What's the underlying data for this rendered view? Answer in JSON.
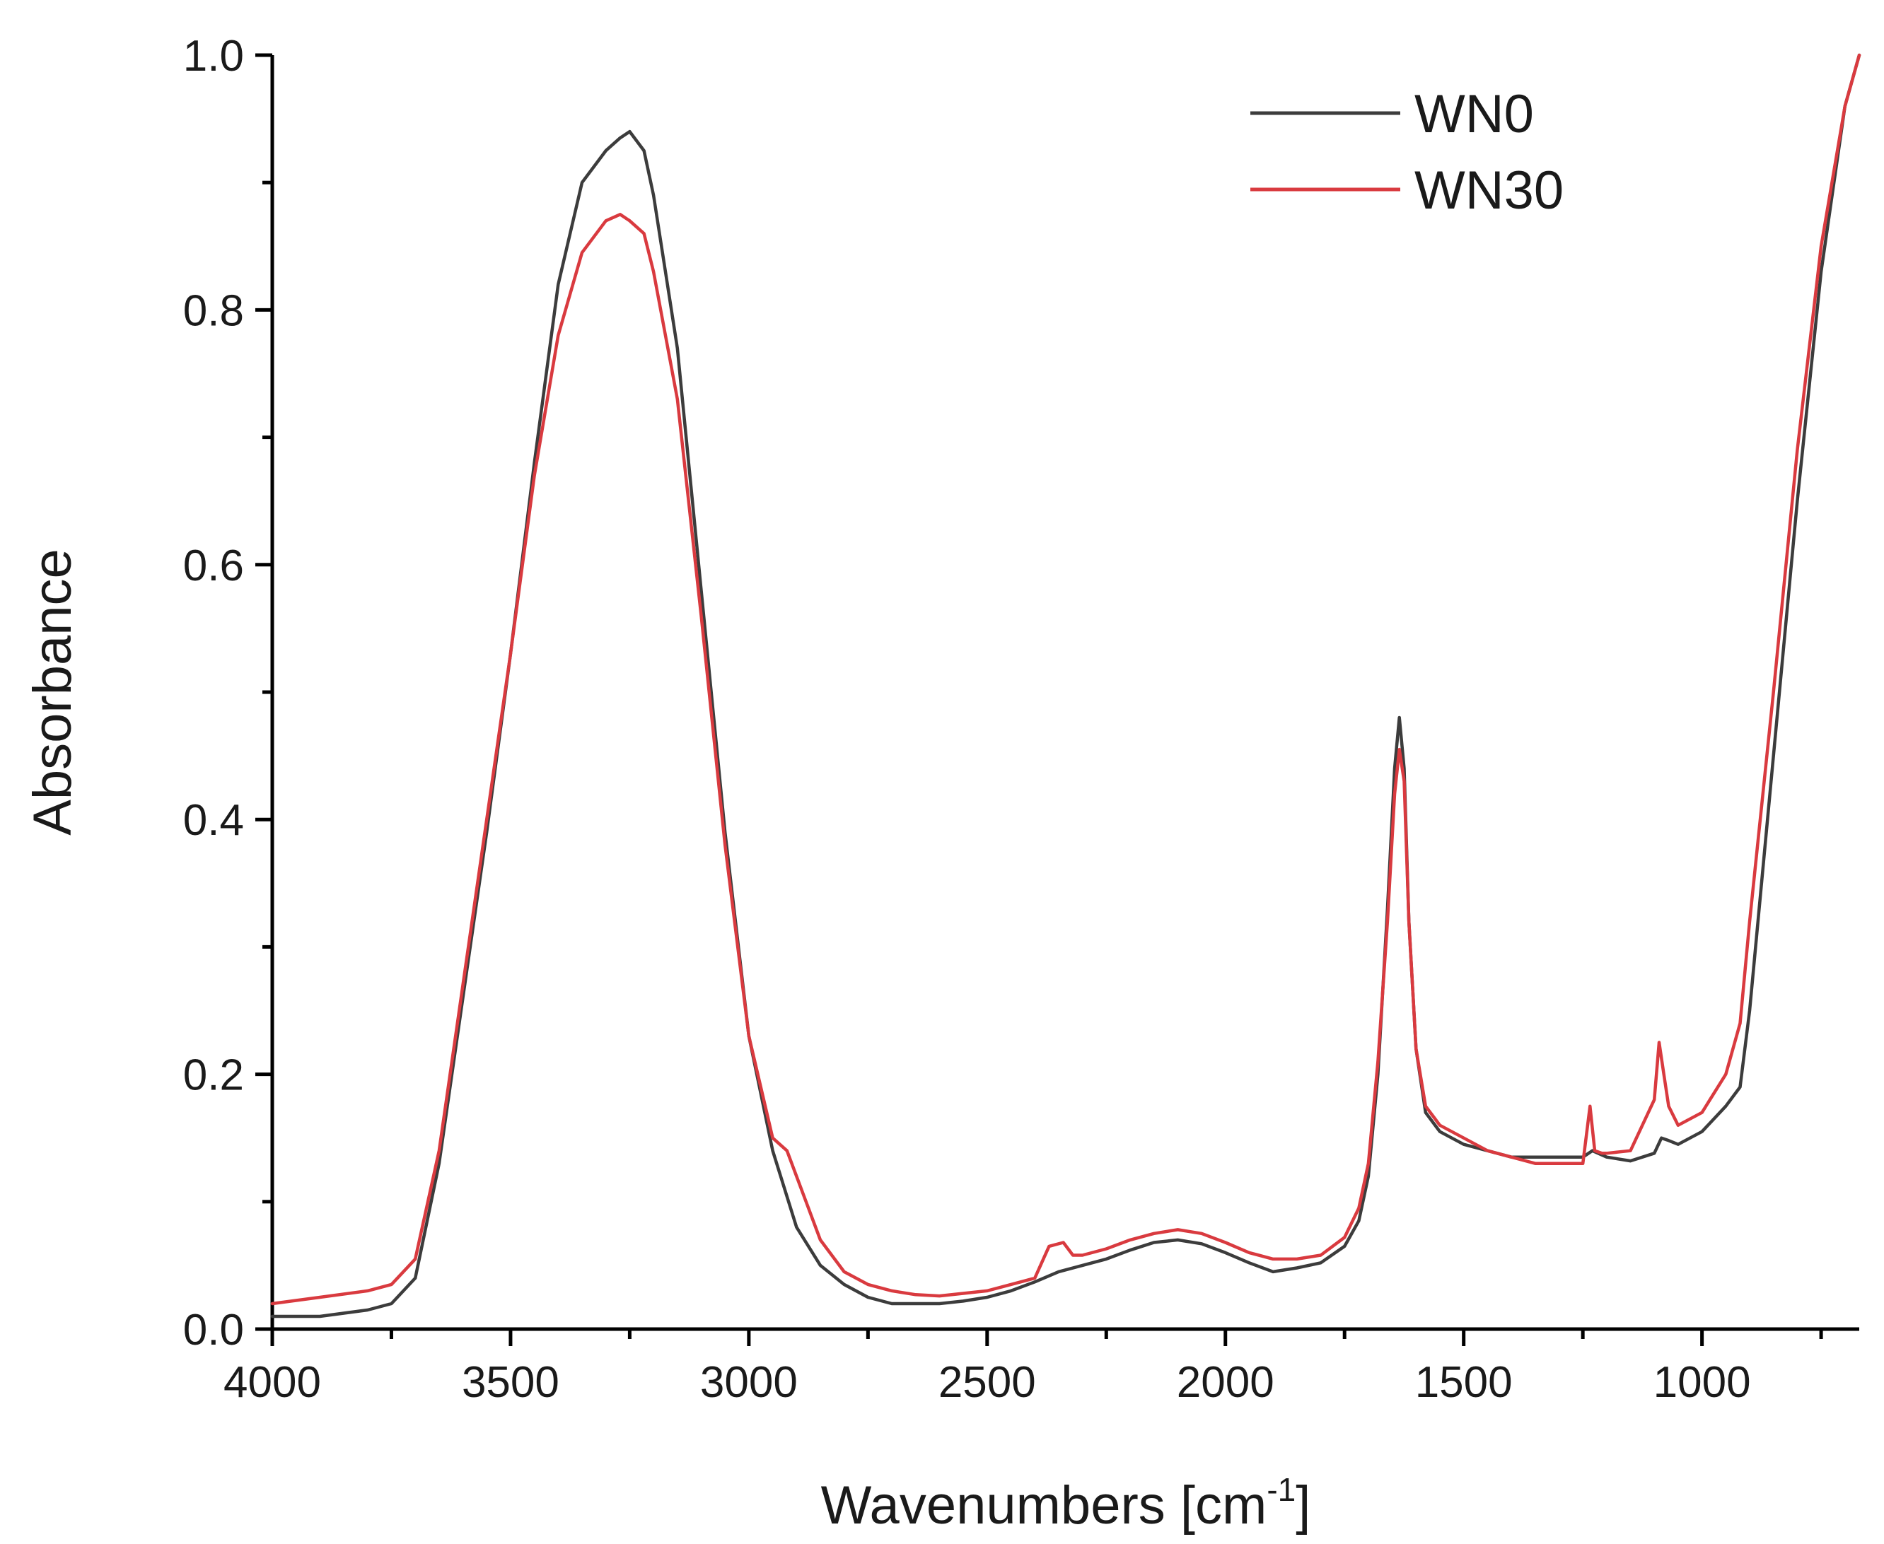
{
  "chart_data": {
    "type": "line",
    "title": "",
    "xlabel": "Wavenumbers [cm",
    "xlabel_superscript": "-1",
    "xlabel_suffix": "]",
    "ylabel": "Absorbance",
    "xlim": [
      4000,
      670
    ],
    "ylim": [
      0.0,
      1.0
    ],
    "x_reversed": true,
    "x_ticks": [
      4000,
      3500,
      3000,
      2500,
      2000,
      1500,
      1000
    ],
    "x_tick_labels": [
      "4000",
      "3500",
      "3000",
      "2500",
      "2000",
      "1500",
      "1000"
    ],
    "y_ticks": [
      0.0,
      0.2,
      0.4,
      0.6,
      0.8,
      1.0
    ],
    "y_tick_labels": [
      "0.0",
      "0.2",
      "0.4",
      "0.6",
      "0.8",
      "1.0"
    ],
    "grid": false,
    "legend_position": "top-right",
    "series": [
      {
        "name": "WN0",
        "color": "#3c3c3c",
        "x": [
          4000,
          3900,
          3800,
          3750,
          3700,
          3650,
          3600,
          3550,
          3500,
          3450,
          3400,
          3350,
          3300,
          3270,
          3250,
          3220,
          3200,
          3150,
          3100,
          3050,
          3000,
          2950,
          2900,
          2850,
          2800,
          2750,
          2700,
          2650,
          2600,
          2550,
          2500,
          2450,
          2400,
          2350,
          2300,
          2250,
          2200,
          2150,
          2100,
          2050,
          2000,
          1950,
          1900,
          1850,
          1800,
          1750,
          1720,
          1700,
          1680,
          1660,
          1645,
          1635,
          1625,
          1615,
          1600,
          1580,
          1550,
          1500,
          1450,
          1400,
          1350,
          1300,
          1250,
          1230,
          1200,
          1150,
          1100,
          1085,
          1070,
          1050,
          1000,
          950,
          920,
          900,
          850,
          800,
          750,
          700,
          670
        ],
        "y": [
          0.01,
          0.01,
          0.015,
          0.02,
          0.04,
          0.13,
          0.26,
          0.39,
          0.53,
          0.68,
          0.82,
          0.9,
          0.925,
          0.935,
          0.94,
          0.925,
          0.89,
          0.77,
          0.58,
          0.39,
          0.23,
          0.14,
          0.08,
          0.05,
          0.035,
          0.025,
          0.02,
          0.02,
          0.02,
          0.022,
          0.025,
          0.03,
          0.037,
          0.045,
          0.05,
          0.055,
          0.062,
          0.068,
          0.07,
          0.067,
          0.06,
          0.052,
          0.045,
          0.048,
          0.052,
          0.065,
          0.085,
          0.12,
          0.2,
          0.33,
          0.44,
          0.48,
          0.44,
          0.32,
          0.22,
          0.17,
          0.155,
          0.145,
          0.14,
          0.135,
          0.135,
          0.135,
          0.135,
          0.14,
          0.135,
          0.132,
          0.138,
          0.15,
          0.148,
          0.145,
          0.155,
          0.175,
          0.19,
          0.25,
          0.45,
          0.65,
          0.83,
          0.96,
          1.0
        ]
      },
      {
        "name": "WN30",
        "color": "#d93a3f",
        "x": [
          4000,
          3900,
          3800,
          3750,
          3700,
          3650,
          3600,
          3550,
          3500,
          3450,
          3400,
          3350,
          3300,
          3270,
          3250,
          3220,
          3200,
          3150,
          3100,
          3050,
          3000,
          2950,
          2920,
          2900,
          2850,
          2800,
          2750,
          2700,
          2650,
          2600,
          2550,
          2500,
          2450,
          2400,
          2370,
          2340,
          2320,
          2300,
          2250,
          2200,
          2150,
          2100,
          2050,
          2000,
          1950,
          1900,
          1850,
          1800,
          1750,
          1720,
          1700,
          1680,
          1660,
          1645,
          1635,
          1625,
          1615,
          1600,
          1580,
          1550,
          1500,
          1450,
          1400,
          1350,
          1300,
          1250,
          1235,
          1225,
          1210,
          1200,
          1150,
          1100,
          1090,
          1080,
          1070,
          1050,
          1000,
          950,
          920,
          900,
          850,
          800,
          750,
          700,
          670
        ],
        "y": [
          0.02,
          0.025,
          0.03,
          0.035,
          0.055,
          0.14,
          0.27,
          0.4,
          0.53,
          0.67,
          0.78,
          0.845,
          0.87,
          0.875,
          0.87,
          0.86,
          0.83,
          0.73,
          0.56,
          0.38,
          0.23,
          0.15,
          0.14,
          0.12,
          0.07,
          0.045,
          0.035,
          0.03,
          0.027,
          0.026,
          0.028,
          0.03,
          0.035,
          0.04,
          0.065,
          0.068,
          0.058,
          0.058,
          0.063,
          0.07,
          0.075,
          0.078,
          0.075,
          0.068,
          0.06,
          0.055,
          0.055,
          0.058,
          0.072,
          0.095,
          0.13,
          0.21,
          0.32,
          0.42,
          0.455,
          0.43,
          0.32,
          0.22,
          0.175,
          0.16,
          0.15,
          0.14,
          0.135,
          0.13,
          0.13,
          0.13,
          0.175,
          0.14,
          0.138,
          0.138,
          0.14,
          0.18,
          0.225,
          0.2,
          0.175,
          0.16,
          0.17,
          0.2,
          0.24,
          0.32,
          0.5,
          0.69,
          0.85,
          0.96,
          1.0
        ]
      }
    ]
  }
}
